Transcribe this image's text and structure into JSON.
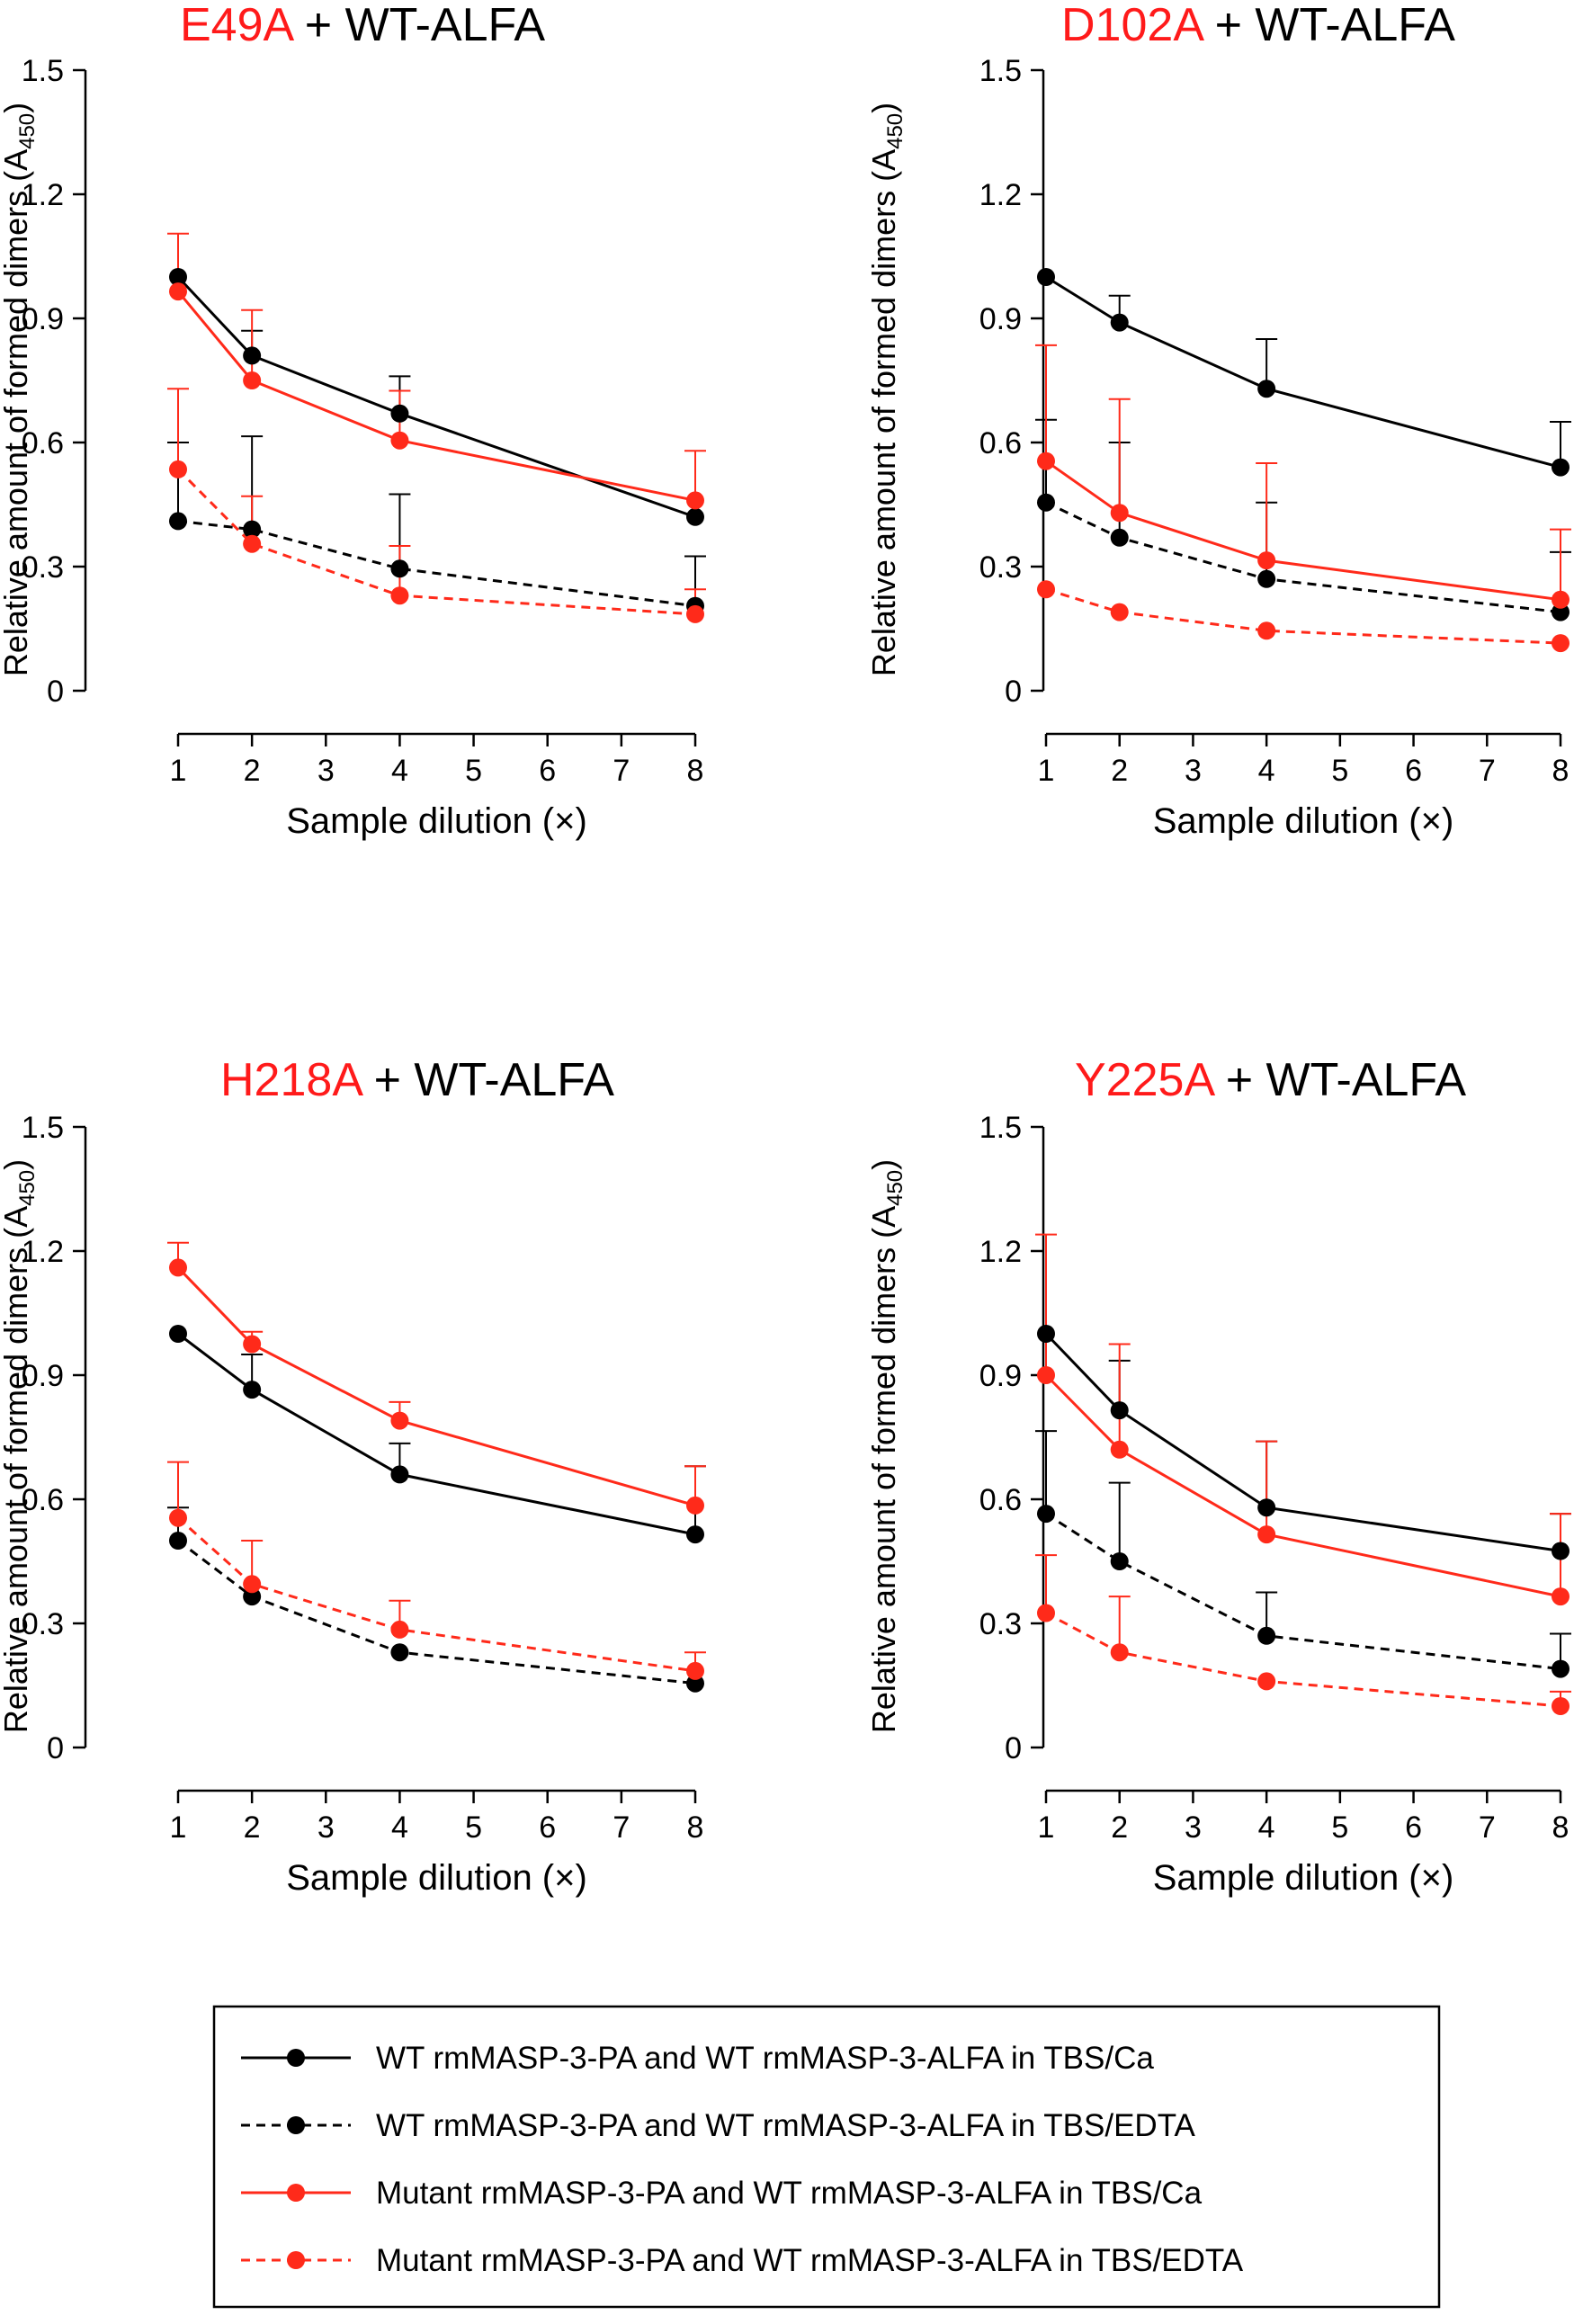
{
  "colors": {
    "wt": "#000000",
    "mutant": "#ff2a1a",
    "title_mutant": "#ff1a1a"
  },
  "legend": {
    "items": [
      {
        "label": "WT rmMASP-3-PA and WT rmMASP-3-ALFA in TBS/Ca",
        "color": "#000000",
        "style": "solid"
      },
      {
        "label": "WT rmMASP-3-PA and WT rmMASP-3-ALFA in TBS/EDTA",
        "color": "#000000",
        "style": "dashed"
      },
      {
        "label": "Mutant rmMASP-3-PA and WT rmMASP-3-ALFA in TBS/Ca",
        "color": "#ff2a1a",
        "style": "solid"
      },
      {
        "label": "Mutant rmMASP-3-PA and WT rmMASP-3-ALFA in TBS/EDTA",
        "color": "#ff2a1a",
        "style": "dashed"
      }
    ]
  },
  "chart_data": [
    {
      "type": "line",
      "title_mutant": "E49A",
      "title_rest": " + WT-ALFA",
      "xlabel": "Sample dilution (×)",
      "ylabel_main": "Relative amount of formed dimers (A",
      "ylabel_sub": "450",
      "ylabel_end": ")",
      "xlim": [
        1,
        8
      ],
      "ylim": [
        0,
        1.5
      ],
      "xticks": [
        "1",
        "2",
        "3",
        "4",
        "5",
        "6",
        "7",
        "8"
      ],
      "yticks": [
        {
          "v": 0,
          "label": "0"
        },
        {
          "v": 0.3,
          "label": "0.3"
        },
        {
          "v": 0.6,
          "label": "0.6"
        },
        {
          "v": 0.9,
          "label": "0.9"
        },
        {
          "v": 1.2,
          "label": "1.2"
        },
        {
          "v": 1.5,
          "label": "1.5"
        }
      ],
      "x": [
        1,
        2,
        4,
        8
      ],
      "series": [
        {
          "name": "WT rmMASP-3-PA and WT rmMASP-3-ALFA in TBS/Ca",
          "color": "#000000",
          "style": "solid",
          "values": [
            1.0,
            0.81,
            0.67,
            0.42
          ],
          "err": [
            0,
            0.06,
            0.09,
            0.0
          ]
        },
        {
          "name": "WT rmMASP-3-PA and WT rmMASP-3-ALFA in TBS/EDTA",
          "color": "#000000",
          "style": "dashed",
          "values": [
            0.41,
            0.39,
            0.295,
            0.205
          ],
          "err": [
            0.19,
            0.225,
            0.18,
            0.12
          ]
        },
        {
          "name": "Mutant rmMASP-3-PA and WT rmMASP-3-ALFA in TBS/Ca",
          "color": "#ff2a1a",
          "style": "solid",
          "values": [
            0.965,
            0.75,
            0.605,
            0.46
          ],
          "err": [
            0.14,
            0.17,
            0.12,
            0.12
          ]
        },
        {
          "name": "Mutant rmMASP-3-PA and WT rmMASP-3-ALFA in TBS/EDTA",
          "color": "#ff2a1a",
          "style": "dashed",
          "values": [
            0.535,
            0.355,
            0.23,
            0.185
          ],
          "err": [
            0.195,
            0.115,
            0.12,
            0.06
          ]
        }
      ]
    },
    {
      "type": "line",
      "title_mutant": "D102A",
      "title_rest": " + WT-ALFA",
      "xlabel": "Sample dilution (×)",
      "ylabel_main": "Relative amount of formed dimers (A",
      "ylabel_sub": "450",
      "ylabel_end": ")",
      "xlim": [
        1,
        8
      ],
      "ylim": [
        0,
        1.5
      ],
      "xticks": [
        "1",
        "2",
        "3",
        "4",
        "5",
        "6",
        "7",
        "8"
      ],
      "yticks": [
        {
          "v": 0,
          "label": "0"
        },
        {
          "v": 0.3,
          "label": "0.3"
        },
        {
          "v": 0.6,
          "label": "0.6"
        },
        {
          "v": 0.9,
          "label": "0.9"
        },
        {
          "v": 1.2,
          "label": "1.2"
        },
        {
          "v": 1.5,
          "label": "1.5"
        }
      ],
      "x": [
        1,
        2,
        4,
        8
      ],
      "series": [
        {
          "name": "WT rmMASP-3-PA and WT rmMASP-3-ALFA in TBS/Ca",
          "color": "#000000",
          "style": "solid",
          "values": [
            1.0,
            0.89,
            0.73,
            0.54
          ],
          "err": [
            0,
            0.065,
            0.12,
            0.11
          ]
        },
        {
          "name": "WT rmMASP-3-PA and WT rmMASP-3-ALFA in TBS/EDTA",
          "color": "#000000",
          "style": "dashed",
          "values": [
            0.455,
            0.37,
            0.27,
            0.19
          ],
          "err": [
            0.2,
            0.23,
            0.185,
            0.145
          ]
        },
        {
          "name": "Mutant rmMASP-3-PA and WT rmMASP-3-ALFA in TBS/Ca",
          "color": "#ff2a1a",
          "style": "solid",
          "values": [
            0.555,
            0.43,
            0.315,
            0.22
          ],
          "err": [
            0.28,
            0.275,
            0.235,
            0.17
          ]
        },
        {
          "name": "Mutant rmMASP-3-PA and WT rmMASP-3-ALFA in TBS/EDTA",
          "color": "#ff2a1a",
          "style": "dashed",
          "values": [
            0.245,
            0.19,
            0.145,
            0.115
          ],
          "err": [
            0,
            0,
            0,
            0
          ]
        }
      ]
    },
    {
      "type": "line",
      "title_mutant": "H218A",
      "title_rest": " + WT-ALFA",
      "xlabel": "Sample dilution (×)",
      "ylabel_main": "Relative amount of formed dimers (A",
      "ylabel_sub": "450",
      "ylabel_end": ")",
      "xlim": [
        1,
        8
      ],
      "ylim": [
        0,
        1.5
      ],
      "xticks": [
        "1",
        "2",
        "3",
        "4",
        "5",
        "6",
        "7",
        "8"
      ],
      "yticks": [
        {
          "v": 0,
          "label": "0"
        },
        {
          "v": 0.3,
          "label": "0.3"
        },
        {
          "v": 0.6,
          "label": "0.6"
        },
        {
          "v": 0.9,
          "label": "0.9"
        },
        {
          "v": 1.2,
          "label": "1.2"
        },
        {
          "v": 1.5,
          "label": "1.5"
        }
      ],
      "x": [
        1,
        2,
        4,
        8
      ],
      "series": [
        {
          "name": "WT rmMASP-3-PA and WT rmMASP-3-ALFA in TBS/Ca",
          "color": "#000000",
          "style": "solid",
          "values": [
            1.0,
            0.865,
            0.66,
            0.515
          ],
          "err": [
            0,
            0.085,
            0.075,
            0.165
          ]
        },
        {
          "name": "WT rmMASP-3-PA and WT rmMASP-3-ALFA in TBS/EDTA",
          "color": "#000000",
          "style": "dashed",
          "values": [
            0.5,
            0.365,
            0.23,
            0.155
          ],
          "err": [
            0.08,
            0,
            0,
            0
          ]
        },
        {
          "name": "Mutant rmMASP-3-PA and WT rmMASP-3-ALFA in TBS/Ca",
          "color": "#ff2a1a",
          "style": "solid",
          "values": [
            1.16,
            0.975,
            0.79,
            0.585
          ],
          "err": [
            0.06,
            0.03,
            0.045,
            0.095
          ]
        },
        {
          "name": "Mutant rmMASP-3-PA and WT rmMASP-3-ALFA in TBS/EDTA",
          "color": "#ff2a1a",
          "style": "dashed",
          "values": [
            0.555,
            0.395,
            0.285,
            0.185
          ],
          "err": [
            0.135,
            0.105,
            0.07,
            0.045
          ]
        }
      ]
    },
    {
      "type": "line",
      "title_mutant": "Y225A",
      "title_rest": " + WT-ALFA",
      "xlabel": "Sample dilution (×)",
      "ylabel_main": "Relative amount of formed dimers (A",
      "ylabel_sub": "450",
      "ylabel_end": ")",
      "xlim": [
        1,
        8
      ],
      "ylim": [
        0,
        1.5
      ],
      "xticks": [
        "1",
        "2",
        "3",
        "4",
        "5",
        "6",
        "7",
        "8"
      ],
      "yticks": [
        {
          "v": 0,
          "label": "0"
        },
        {
          "v": 0.3,
          "label": "0.3"
        },
        {
          "v": 0.6,
          "label": "0.6"
        },
        {
          "v": 0.9,
          "label": "0.9"
        },
        {
          "v": 1.2,
          "label": "1.2"
        },
        {
          "v": 1.5,
          "label": "1.5"
        }
      ],
      "x": [
        1,
        2,
        4,
        8
      ],
      "series": [
        {
          "name": "WT rmMASP-3-PA and WT rmMASP-3-ALFA in TBS/Ca",
          "color": "#000000",
          "style": "solid",
          "values": [
            1.0,
            0.815,
            0.58,
            0.475
          ],
          "err": [
            0,
            0.12,
            0.16,
            0.09
          ]
        },
        {
          "name": "WT rmMASP-3-PA and WT rmMASP-3-ALFA in TBS/EDTA",
          "color": "#000000",
          "style": "dashed",
          "values": [
            0.565,
            0.45,
            0.27,
            0.19
          ],
          "err": [
            0.2,
            0.19,
            0.105,
            0.085
          ]
        },
        {
          "name": "Mutant rmMASP-3-PA and WT rmMASP-3-ALFA in TBS/Ca",
          "color": "#ff2a1a",
          "style": "solid",
          "values": [
            0.9,
            0.72,
            0.515,
            0.365
          ],
          "err": [
            0.34,
            0.255,
            0.225,
            0.2
          ]
        },
        {
          "name": "Mutant rmMASP-3-PA and WT rmMASP-3-ALFA in TBS/EDTA",
          "color": "#ff2a1a",
          "style": "dashed",
          "values": [
            0.325,
            0.23,
            0.16,
            0.1
          ],
          "err": [
            0.14,
            0.135,
            0,
            0.035
          ]
        }
      ]
    }
  ]
}
